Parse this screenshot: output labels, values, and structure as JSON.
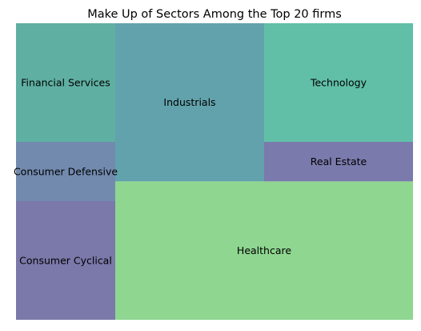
{
  "chart_data": {
    "type": "treemap",
    "title": "Make Up of Sectors Among the Top 20 firms",
    "xlabel": "",
    "ylabel": "",
    "grid": false,
    "legend": "none",
    "tiles": [
      {
        "label": "Consumer Cyclical",
        "value": 2,
        "color": "#7b78aa"
      },
      {
        "label": "Consumer Defensive",
        "value": 1,
        "color": "#728aae"
      },
      {
        "label": "Financial Services",
        "value": 2,
        "color": "#5fb0a3"
      },
      {
        "label": "Healthcare",
        "value": 7,
        "color": "#8fd691"
      },
      {
        "label": "Industrials",
        "value": 4,
        "color": "#62a2ac"
      },
      {
        "label": "Real Estate",
        "value": 1,
        "color": "#7b7aac"
      },
      {
        "label": "Technology",
        "value": 3,
        "color": "#61bfa8"
      }
    ]
  }
}
